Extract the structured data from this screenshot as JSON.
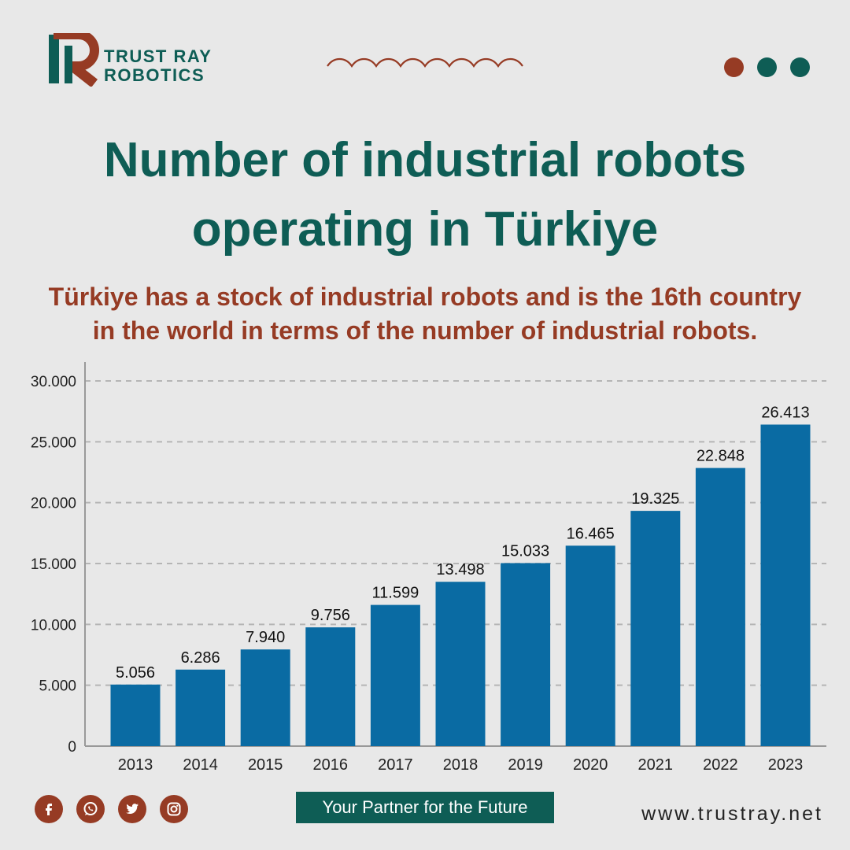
{
  "brand": {
    "line1": "TRUST RAY",
    "line2": "ROBOTICS",
    "logo_icon": "r-monogram-logo",
    "colors": {
      "teal": "#0e5d55",
      "rust": "#963b24",
      "bar": "#0a6ba3"
    }
  },
  "header": {
    "dot_colors": [
      "#963b24",
      "#0e5d55",
      "#0e5d55"
    ]
  },
  "headline": {
    "title_line1": "Number of industrial robots",
    "title_line2": "operating in Türkiye",
    "subtitle_line1": "Türkiye has a stock of industrial robots and is the 16th country",
    "subtitle_line2": "in the world in terms of the number of industrial robots."
  },
  "chart_data": {
    "type": "bar",
    "categories": [
      "2013",
      "2014",
      "2015",
      "2016",
      "2017",
      "2018",
      "2019",
      "2020",
      "2021",
      "2022",
      "2023"
    ],
    "values": [
      5056,
      6286,
      7940,
      9756,
      11599,
      13498,
      15033,
      16465,
      19325,
      22848,
      26413
    ],
    "value_labels": [
      "5.056",
      "6.286",
      "7.940",
      "9.756",
      "11.599",
      "13.498",
      "15.033",
      "16.465",
      "19.325",
      "22.848",
      "26.413"
    ],
    "yticks": [
      0,
      5000,
      10000,
      15000,
      20000,
      25000,
      30000
    ],
    "ytick_labels": [
      "0",
      "5.000",
      "10.000",
      "15.000",
      "20.000",
      "25.000",
      "30.000"
    ],
    "ylim": [
      0,
      30000
    ],
    "grid": true,
    "grid_style": "dashed",
    "legend": false
  },
  "footer": {
    "social": [
      "facebook-icon",
      "whatsapp-icon",
      "twitter-icon",
      "instagram-icon"
    ],
    "tagline": "Your Partner for the Future",
    "website": "www.trustray.net"
  }
}
